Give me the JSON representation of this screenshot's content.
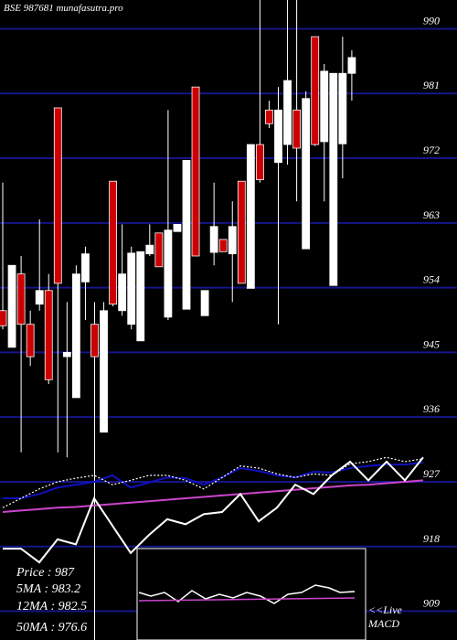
{
  "chart_data": {
    "type": "candlestick",
    "title": "BSE 987681 munafasutra.pro",
    "ylim": [
      905,
      994
    ],
    "yticks": [
      990,
      981,
      972,
      963,
      954,
      945,
      936,
      927,
      918,
      909
    ],
    "grid": true,
    "grid_color": "#15158a",
    "up_color": "#ffffff",
    "down_color": "#cc0000",
    "candles": {
      "open": [
        950.8,
        945.7,
        955.9,
        948.9,
        951.7,
        953.6,
        979.0,
        944.4,
        938.7,
        954.8,
        948.9,
        933.9,
        968.8,
        950.8,
        948.9,
        946.6,
        958.7,
        961.6,
        949.9,
        961.8,
        951.0,
        981.9,
        950.1,
        958.9,
        960.7,
        958.7,
        968.8,
        953.9,
        973.9,
        978.7,
        971.4,
        973.9,
        978.7,
        959.4,
        988.9,
        974.3,
        954.3,
        974.0,
        983.8
      ],
      "high": [
        968.6,
        957.1,
        958.4,
        950.8,
        963.5,
        955.9,
        979.0,
        952.0,
        957.1,
        959.7,
        952.0,
        952.0,
        968.8,
        962.8,
        959.7,
        959.0,
        962.8,
        961.6,
        978.7,
        962.8,
        971.7,
        981.9,
        953.6,
        968.6,
        960.7,
        966.0,
        968.8,
        973.9,
        994.0,
        980.0,
        981.9,
        994.0,
        994.0,
        981.3,
        988.9,
        985.1,
        983.8,
        988.9,
        987.0
      ],
      "low": [
        948.2,
        945.7,
        931.1,
        943.1,
        950.8,
        940.6,
        931.1,
        930.4,
        938.7,
        949.5,
        905.0,
        933.9,
        951.4,
        950.1,
        948.2,
        946.6,
        958.4,
        956.9,
        949.5,
        961.8,
        951.0,
        958.4,
        950.1,
        957.1,
        959.0,
        952.0,
        954.6,
        953.9,
        968.6,
        976.2,
        948.9,
        971.1,
        966.0,
        959.4,
        973.7,
        966.0,
        954.3,
        969.2,
        980.0
      ],
      "close": [
        948.7,
        957.1,
        948.9,
        944.4,
        953.6,
        941.2,
        954.6,
        945.0,
        955.9,
        958.7,
        944.4,
        950.8,
        951.7,
        955.9,
        958.8,
        959.0,
        959.9,
        956.9,
        962.0,
        962.8,
        971.7,
        958.4,
        953.6,
        962.5,
        959.0,
        962.5,
        954.6,
        973.9,
        969.0,
        976.8,
        978.7,
        982.8,
        973.4,
        980.3,
        973.9,
        984.1,
        983.8,
        983.8,
        986.0
      ]
    },
    "series": [
      {
        "color": "#cc44cc",
        "values": [
          922.8,
          923.0,
          923.2,
          923.4,
          923.5,
          923.7,
          923.9,
          924.1,
          924.3,
          924.5,
          924.7,
          924.9,
          925.1,
          925.3,
          925.5,
          925.7,
          925.9,
          926.1,
          926.3,
          926.5,
          926.6,
          926.8,
          927.0,
          927.2
        ]
      },
      {
        "color": "#1010c0",
        "values": [
          924.7,
          924.7,
          925.3,
          926.2,
          926.6,
          927.0,
          927.9,
          926.2,
          926.9,
          927.6,
          927.5,
          926.6,
          927.6,
          928.9,
          928.5,
          927.9,
          927.6,
          928.4,
          928.3,
          928.9,
          929.2,
          929.4,
          929.4,
          929.7
        ]
      },
      {
        "color": "#ffffff",
        "dashed": true,
        "values": [
          923.4,
          924.7,
          926.0,
          927.0,
          927.5,
          927.9,
          926.6,
          927.2,
          927.9,
          927.9,
          927.2,
          926.0,
          927.6,
          929.2,
          928.9,
          928.1,
          927.6,
          928.1,
          927.9,
          929.5,
          929.8,
          930.4,
          929.8,
          930.2
        ]
      },
      {
        "color": "#ffffff",
        "values": [
          917.7,
          917.7,
          915.8,
          919.0,
          918.3,
          924.7,
          920.9,
          917.1,
          919.6,
          921.8,
          921.1,
          922.5,
          922.8,
          925.3,
          921.5,
          923.4,
          926.6,
          925.3,
          927.9,
          929.8,
          927.2,
          929.8,
          927.2,
          930.4
        ]
      }
    ],
    "info": [
      "Price  :  987",
      "5MA : 983.2",
      "12MA : 982.5",
      "50MA : 976.6"
    ],
    "macd_label": [
      "<<Live",
      "MACD"
    ]
  }
}
